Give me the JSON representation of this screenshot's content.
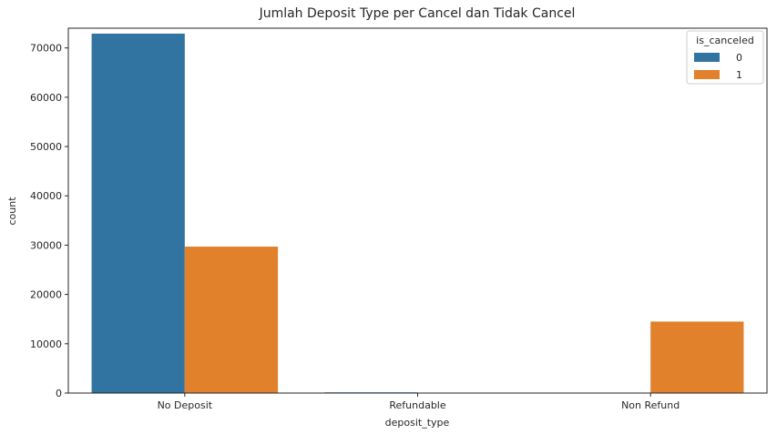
{
  "chart_data": {
    "type": "bar",
    "title": "Jumlah Deposit Type per Cancel dan Tidak Cancel",
    "xlabel": "deposit_type",
    "ylabel": "count",
    "categories": [
      "No Deposit",
      "Refundable",
      "Non Refund"
    ],
    "series": [
      {
        "name": "0",
        "color": "#3274a1",
        "values": [
          72900,
          140,
          95
        ]
      },
      {
        "name": "1",
        "color": "#e1812c",
        "values": [
          29700,
          35,
          14500
        ]
      }
    ],
    "ylim": [
      0,
      74000
    ],
    "yticks": [
      0,
      10000,
      20000,
      30000,
      40000,
      50000,
      60000,
      70000
    ],
    "grid": false,
    "legend": {
      "title": "is_canceled",
      "placement": "top-right"
    }
  }
}
